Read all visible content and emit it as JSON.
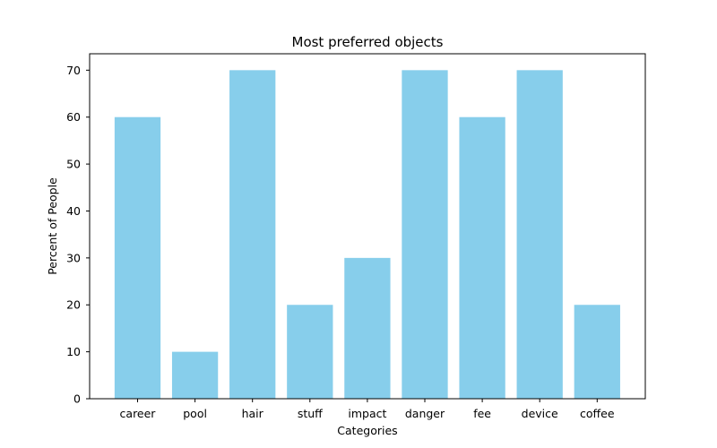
{
  "chart_data": {
    "type": "bar",
    "title": "Most preferred objects",
    "xlabel": "Categories",
    "ylabel": "Percent of People",
    "categories": [
      "career",
      "pool",
      "hair",
      "stuff",
      "impact",
      "danger",
      "fee",
      "device",
      "coffee"
    ],
    "values": [
      60,
      10,
      70,
      20,
      30,
      70,
      60,
      70,
      20
    ],
    "ylim": [
      0,
      73.5
    ],
    "yticks": [
      0,
      10,
      20,
      30,
      40,
      50,
      60,
      70
    ],
    "bar_color": "#87ceeb",
    "grid": false,
    "legend": false
  }
}
